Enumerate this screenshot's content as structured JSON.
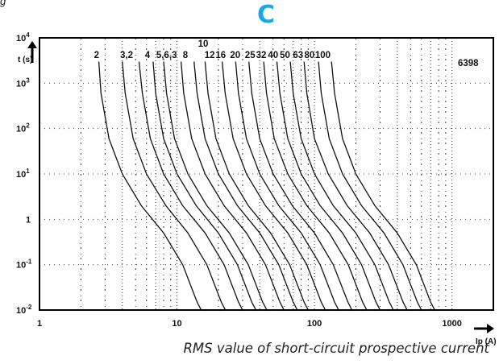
{
  "page": {
    "top_text": "g",
    "letter": "C",
    "letter_color": "#17a8e6",
    "caption": "RMS value of short-circuit prospective current"
  },
  "chart_data": {
    "type": "line",
    "title": "C",
    "xlabel": "Ip (A)",
    "ylabel": "t (s)",
    "xscale": "log",
    "yscale": "log",
    "xlim": [
      1,
      2000
    ],
    "ylim": [
      0.01,
      10000
    ],
    "grid": false,
    "legend": "none",
    "x_ticks": [
      {
        "v": 1,
        "label": "1"
      },
      {
        "v": 10,
        "label": "10"
      },
      {
        "v": 100,
        "label": "100"
      },
      {
        "v": 1000,
        "label": "1000"
      }
    ],
    "y_ticks": [
      {
        "exp": 4,
        "base": "10",
        "sup": "4"
      },
      {
        "exp": 3,
        "base": "10",
        "sup": "3"
      },
      {
        "exp": 2,
        "base": "10",
        "sup": "2"
      },
      {
        "exp": 1,
        "base": "10",
        "sup": "1"
      },
      {
        "exp": 0,
        "base": "1",
        "sup": ""
      },
      {
        "exp": -1,
        "base": "10",
        "sup": "-1"
      },
      {
        "exp": -2,
        "base": "10",
        "sup": "-2"
      }
    ],
    "series_labels": [
      "2",
      "3",
      "4",
      "5",
      "6",
      "8",
      "10",
      "12",
      "16",
      "20",
      "25",
      "32",
      "40",
      "50",
      "63",
      "80",
      "100"
    ],
    "label_strings": [
      "2",
      "3,2",
      "4",
      "5,6,3",
      "8",
      "10",
      "12",
      "16",
      "20",
      "25",
      "32",
      "40",
      "50",
      "63",
      "80",
      "100"
    ],
    "annotation": "6398",
    "series": [
      {
        "rating": 2,
        "points": [
          [
            2.7,
            3000
          ],
          [
            2.8,
            600
          ],
          [
            3.2,
            60
          ],
          [
            4,
            10
          ],
          [
            5.5,
            2
          ],
          [
            8,
            0.5
          ],
          [
            11,
            0.1
          ],
          [
            14,
            0.015
          ],
          [
            15,
            0.01
          ]
        ]
      },
      {
        "rating": 3,
        "points": [
          [
            4.0,
            3000
          ],
          [
            4.2,
            600
          ],
          [
            4.8,
            60
          ],
          [
            6,
            10
          ],
          [
            8.3,
            2
          ],
          [
            12,
            0.5
          ],
          [
            16.5,
            0.1
          ],
          [
            21,
            0.015
          ],
          [
            22.5,
            0.01
          ]
        ]
      },
      {
        "rating": 4,
        "points": [
          [
            5.3,
            3000
          ],
          [
            5.6,
            600
          ],
          [
            6.4,
            60
          ],
          [
            8,
            10
          ],
          [
            11,
            2
          ],
          [
            16,
            0.5
          ],
          [
            22,
            0.1
          ],
          [
            28,
            0.015
          ],
          [
            30,
            0.01
          ]
        ]
      },
      {
        "rating": 5,
        "points": [
          [
            6.7,
            3000
          ],
          [
            7,
            600
          ],
          [
            8,
            60
          ],
          [
            10,
            10
          ],
          [
            13.8,
            2
          ],
          [
            20,
            0.5
          ],
          [
            27.5,
            0.1
          ],
          [
            35,
            0.015
          ],
          [
            37.5,
            0.01
          ]
        ]
      },
      {
        "rating": 6,
        "points": [
          [
            8,
            3000
          ],
          [
            8.4,
            600
          ],
          [
            9.6,
            60
          ],
          [
            12,
            10
          ],
          [
            16.5,
            2
          ],
          [
            24,
            0.5
          ],
          [
            33,
            0.1
          ],
          [
            42,
            0.015
          ],
          [
            45,
            0.01
          ]
        ]
      },
      {
        "rating": 8,
        "points": [
          [
            10.7,
            3000
          ],
          [
            11.2,
            600
          ],
          [
            12.8,
            60
          ],
          [
            16,
            10
          ],
          [
            22,
            2
          ],
          [
            32,
            0.5
          ],
          [
            44,
            0.1
          ],
          [
            56,
            0.015
          ],
          [
            60,
            0.01
          ]
        ]
      },
      {
        "rating": 10,
        "points": [
          [
            13.3,
            3000
          ],
          [
            14,
            600
          ],
          [
            16,
            60
          ],
          [
            20,
            10
          ],
          [
            27.5,
            2
          ],
          [
            40,
            0.5
          ],
          [
            55,
            0.1
          ],
          [
            70,
            0.015
          ],
          [
            75,
            0.01
          ]
        ]
      },
      {
        "rating": 12,
        "points": [
          [
            16,
            3000
          ],
          [
            16.8,
            600
          ],
          [
            19.2,
            60
          ],
          [
            24,
            10
          ],
          [
            33,
            2
          ],
          [
            48,
            0.5
          ],
          [
            66,
            0.1
          ],
          [
            84,
            0.015
          ],
          [
            90,
            0.01
          ]
        ]
      },
      {
        "rating": 16,
        "points": [
          [
            21.3,
            3000
          ],
          [
            22.4,
            600
          ],
          [
            25.6,
            60
          ],
          [
            32,
            10
          ],
          [
            44,
            2
          ],
          [
            64,
            0.5
          ],
          [
            88,
            0.1
          ],
          [
            112,
            0.015
          ],
          [
            120,
            0.01
          ]
        ]
      },
      {
        "rating": 20,
        "points": [
          [
            26.7,
            3000
          ],
          [
            28,
            600
          ],
          [
            32,
            60
          ],
          [
            40,
            10
          ],
          [
            55,
            2
          ],
          [
            80,
            0.5
          ],
          [
            110,
            0.1
          ],
          [
            140,
            0.015
          ],
          [
            150,
            0.01
          ]
        ]
      },
      {
        "rating": 25,
        "points": [
          [
            33.3,
            3000
          ],
          [
            35,
            600
          ],
          [
            40,
            60
          ],
          [
            50,
            10
          ],
          [
            69,
            2
          ],
          [
            100,
            0.5
          ],
          [
            137,
            0.1
          ],
          [
            175,
            0.015
          ],
          [
            187,
            0.01
          ]
        ]
      },
      {
        "rating": 32,
        "points": [
          [
            42.7,
            3000
          ],
          [
            44.8,
            600
          ],
          [
            51,
            60
          ],
          [
            64,
            10
          ],
          [
            88,
            2
          ],
          [
            128,
            0.5
          ],
          [
            176,
            0.1
          ],
          [
            224,
            0.015
          ],
          [
            240,
            0.01
          ]
        ]
      },
      {
        "rating": 40,
        "points": [
          [
            53.3,
            3000
          ],
          [
            56,
            600
          ],
          [
            64,
            60
          ],
          [
            80,
            10
          ],
          [
            110,
            2
          ],
          [
            160,
            0.5
          ],
          [
            220,
            0.1
          ],
          [
            280,
            0.015
          ],
          [
            300,
            0.01
          ]
        ]
      },
      {
        "rating": 50,
        "points": [
          [
            66.7,
            3000
          ],
          [
            70,
            600
          ],
          [
            80,
            60
          ],
          [
            100,
            10
          ],
          [
            137,
            2
          ],
          [
            200,
            0.5
          ],
          [
            275,
            0.1
          ],
          [
            350,
            0.015
          ],
          [
            375,
            0.01
          ]
        ]
      },
      {
        "rating": 63,
        "points": [
          [
            84,
            3000
          ],
          [
            88,
            600
          ],
          [
            100,
            60
          ],
          [
            126,
            10
          ],
          [
            173,
            2
          ],
          [
            252,
            0.5
          ],
          [
            346,
            0.1
          ],
          [
            441,
            0.015
          ],
          [
            472,
            0.01
          ]
        ]
      },
      {
        "rating": 80,
        "points": [
          [
            107,
            3000
          ],
          [
            112,
            600
          ],
          [
            128,
            60
          ],
          [
            160,
            10
          ],
          [
            220,
            2
          ],
          [
            320,
            0.5
          ],
          [
            440,
            0.1
          ],
          [
            560,
            0.015
          ],
          [
            600,
            0.01
          ]
        ]
      },
      {
        "rating": 100,
        "points": [
          [
            133,
            3000
          ],
          [
            140,
            600
          ],
          [
            160,
            60
          ],
          [
            200,
            10
          ],
          [
            275,
            2
          ],
          [
            400,
            0.5
          ],
          [
            550,
            0.1
          ],
          [
            700,
            0.015
          ],
          [
            750,
            0.01
          ]
        ]
      }
    ]
  }
}
